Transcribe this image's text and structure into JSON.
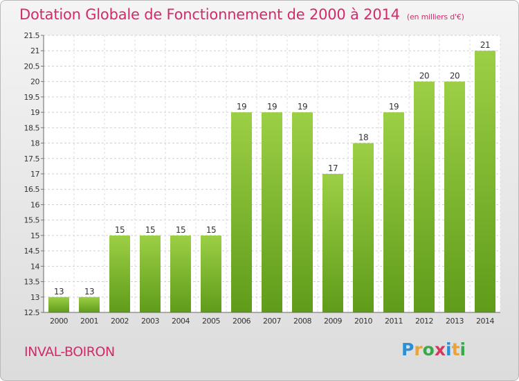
{
  "title": "Dotation Globale de Fonctionnement de 2000 à 2014",
  "subtitle": "(en milliers d'€)",
  "commune": "INVAL-BOIRON",
  "logo": {
    "text": "Proxiti",
    "colors": [
      "#2a8fd6",
      "#e8a43a",
      "#3aa84a",
      "#d6375c",
      "#2a8fd6",
      "#e8a43a",
      "#3aa84a"
    ]
  },
  "colors": {
    "title": "#d32a6b",
    "bar_top": "#9ccf45",
    "bar_bottom": "#5f9c1a"
  },
  "chart_data": {
    "type": "bar",
    "title": "Dotation Globale de Fonctionnement de 2000 à 2014",
    "subtitle": "(en milliers d'€)",
    "categories": [
      "2000",
      "2001",
      "2002",
      "2003",
      "2004",
      "2005",
      "2006",
      "2007",
      "2008",
      "2009",
      "2010",
      "2011",
      "2012",
      "2013",
      "2014"
    ],
    "values": [
      13,
      13,
      15,
      15,
      15,
      15,
      19,
      19,
      19,
      17,
      18,
      19,
      20,
      20,
      21
    ],
    "ylim": [
      12.5,
      21.5
    ],
    "yticks": [
      "12.5",
      "13",
      "13.5",
      "14",
      "14.5",
      "15",
      "15.5",
      "16",
      "16.5",
      "17",
      "17.5",
      "18",
      "18.5",
      "19",
      "19.5",
      "20",
      "20.5",
      "21",
      "21.5"
    ],
    "grid": true,
    "xlabel": "",
    "ylabel": ""
  }
}
